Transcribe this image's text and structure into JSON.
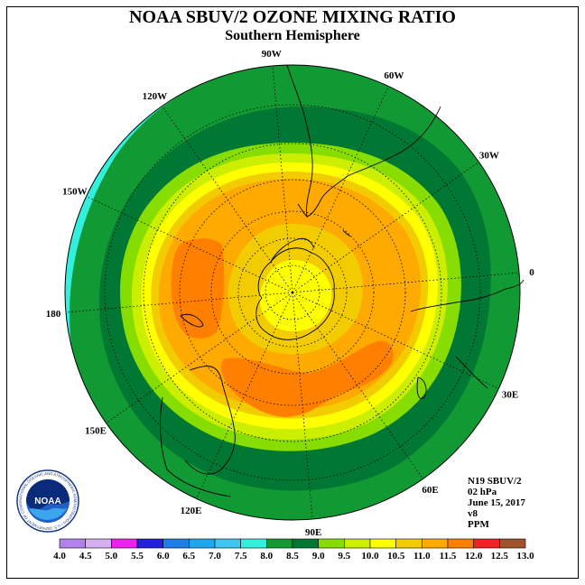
{
  "title": "NOAA SBUV/2 OZONE MIXING RATIO",
  "subtitle": "Southern Hemisphere",
  "longitude_labels": [
    "90W",
    "60W",
    "30W",
    "0",
    "30E",
    "60E",
    "90E",
    "120E",
    "150E",
    "180",
    "150W",
    "120W"
  ],
  "info_lines": [
    "N19 SBUV/2",
    "02 hPa",
    "June 15, 2017",
    "v8",
    "PPM"
  ],
  "logo": {
    "text": "NOAA",
    "ring_text": "NATIONAL OCEANIC AND ATMOSPHERIC ADMINISTRATION • U.S. DEPARTMENT OF COMMERCE •"
  },
  "colorbar": {
    "unit": "PPM",
    "labels": [
      "4.0",
      "4.5",
      "5.0",
      "5.5",
      "6.0",
      "6.5",
      "7.0",
      "7.5",
      "8.0",
      "8.5",
      "9.0",
      "9.5",
      "10.0",
      "10.5",
      "11.0",
      "11.5",
      "12.0",
      "12.5",
      "13.0"
    ],
    "colors": [
      "#b380ee",
      "#d6b0f2",
      "#ee22ee",
      "#2222dd",
      "#1f7ee6",
      "#1fa7ee",
      "#3ec6f0",
      "#33f0dd",
      "#119933",
      "#007733",
      "#88dd00",
      "#ccee00",
      "#ffff00",
      "#f2cc00",
      "#ffaa00",
      "#ff7f00",
      "#ee2222",
      "#a0522d"
    ]
  },
  "map_colors": {
    "cyan": "#33f0dd",
    "green_light": "#119933",
    "green_dark": "#007733",
    "lime": "#88dd00",
    "yellow_green": "#ccee00",
    "yellow": "#ffff00",
    "gold": "#f2cc00",
    "orange_light": "#ffaa00",
    "orange_dark": "#ff7f00"
  }
}
